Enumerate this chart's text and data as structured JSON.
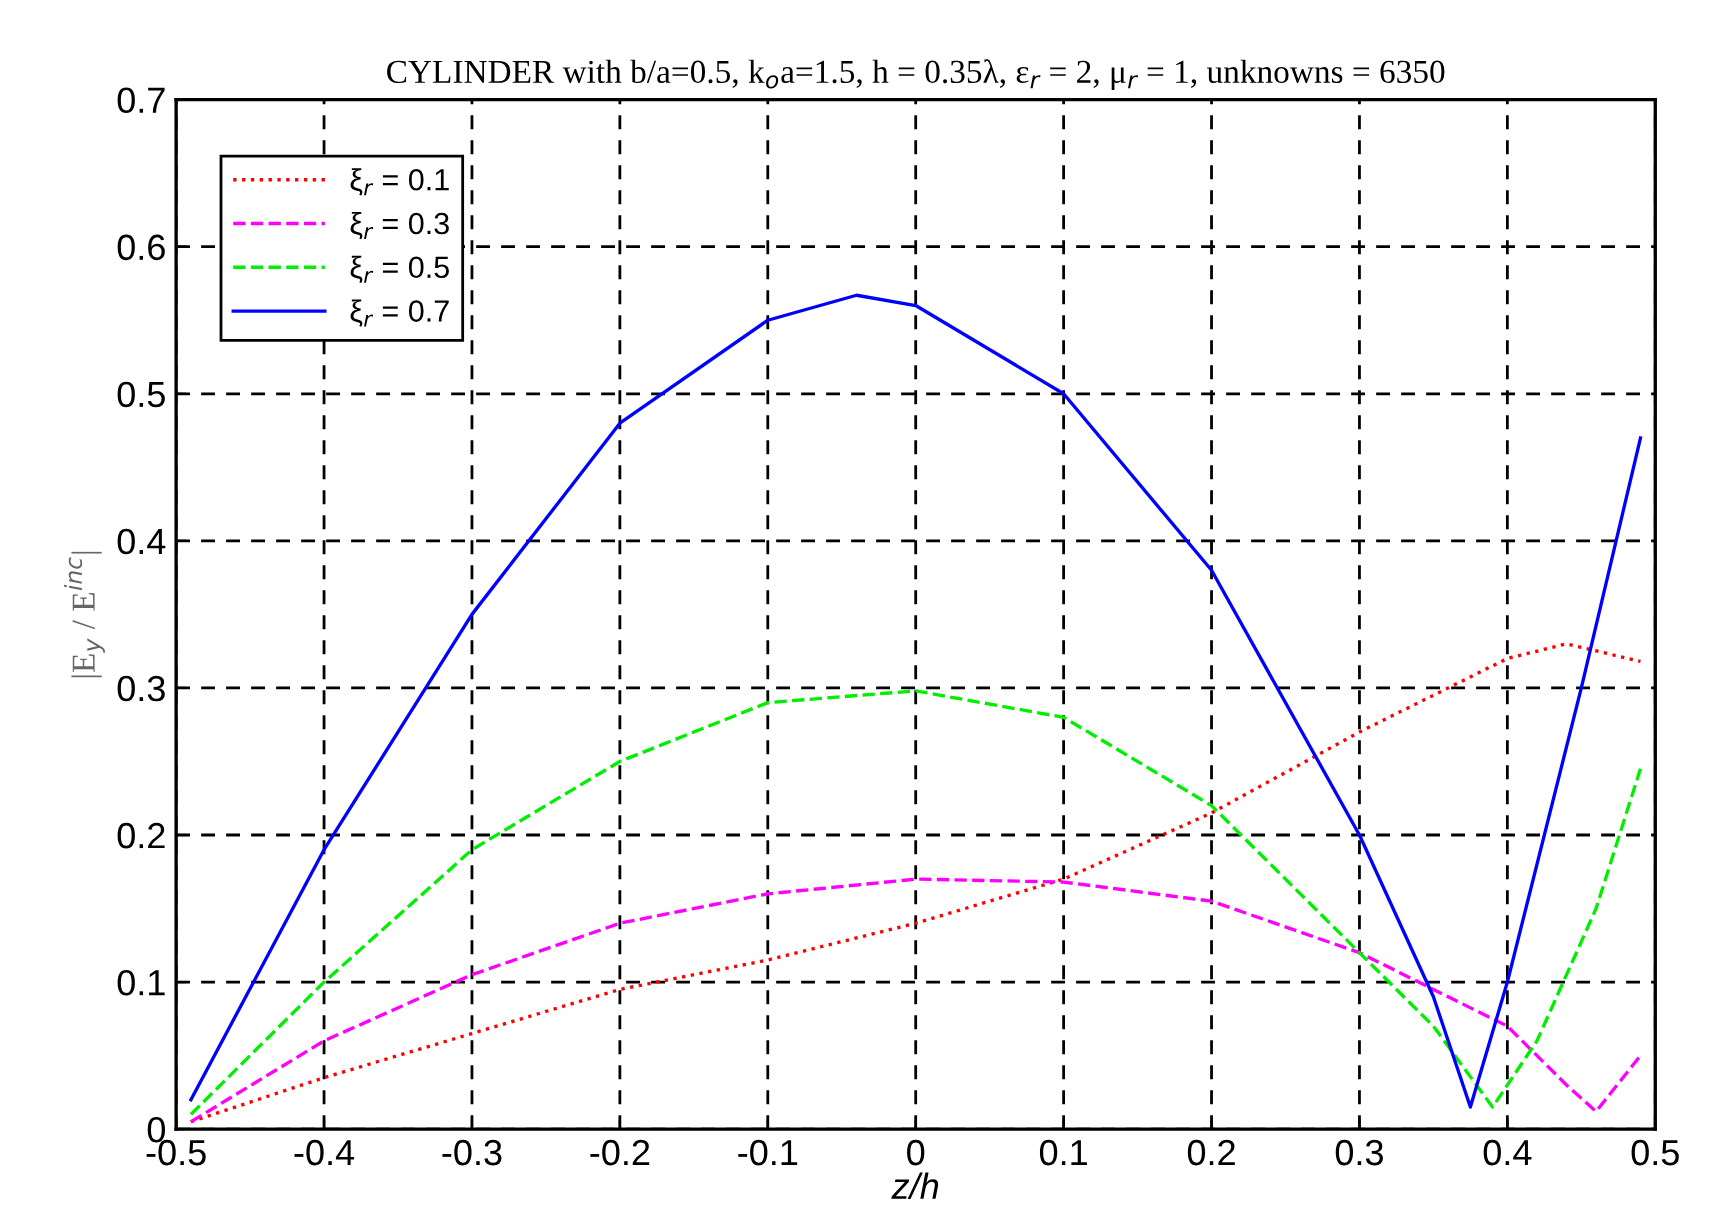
{
  "chart_data": {
    "type": "line",
    "title": "CYLINDER with b/a=0.5, k$_{o}$a=1.5, h = 0.35λ, ε$_{r}$ = 2, μ$_{r}$ = 1, unknowns = 6350",
    "xlabel": "z/h",
    "ylabel": "|E$_{y}$ / E$^{inc}$|",
    "xlim": [
      -0.5,
      0.5
    ],
    "ylim": [
      0,
      0.7
    ],
    "xticks": [
      -0.5,
      -0.4,
      -0.3,
      -0.2,
      -0.1,
      0,
      0.1,
      0.2,
      0.3,
      0.4,
      0.5
    ],
    "yticks": [
      0,
      0.1,
      0.2,
      0.3,
      0.4,
      0.5,
      0.6,
      0.7
    ],
    "grid": true,
    "legend": "top left",
    "series": [
      {
        "name": "ξ$_{r}$ = 0.1",
        "color": "#ff0000",
        "line_style": "dotted",
        "x": [
          -0.49,
          -0.4,
          -0.3,
          -0.2,
          -0.1,
          0,
          0.1,
          0.2,
          0.3,
          0.4,
          0.44,
          0.49
        ],
        "values": [
          0.005,
          0.035,
          0.065,
          0.095,
          0.115,
          0.14,
          0.17,
          0.215,
          0.27,
          0.32,
          0.33,
          0.318
        ]
      },
      {
        "name": "ξ$_{r}$ = 0.3",
        "color": "#ff00ff",
        "line_style": "dashed",
        "x": [
          -0.49,
          -0.4,
          -0.3,
          -0.2,
          -0.1,
          0,
          0.1,
          0.2,
          0.3,
          0.4,
          0.44,
          0.46,
          0.49
        ],
        "values": [
          0.005,
          0.06,
          0.105,
          0.14,
          0.16,
          0.17,
          0.168,
          0.155,
          0.12,
          0.07,
          0.03,
          0.012,
          0.05
        ]
      },
      {
        "name": "ξ$_{r}$ = 0.5",
        "color": "#00ee00",
        "line_style": "dashed",
        "x": [
          -0.49,
          -0.4,
          -0.3,
          -0.2,
          -0.1,
          0,
          0.1,
          0.2,
          0.3,
          0.35,
          0.39,
          0.42,
          0.46,
          0.49
        ],
        "values": [
          0.01,
          0.1,
          0.19,
          0.25,
          0.29,
          0.298,
          0.28,
          0.22,
          0.12,
          0.07,
          0.015,
          0.06,
          0.15,
          0.245
        ]
      },
      {
        "name": "ξ$_{r}$ = 0.7",
        "color": "#0000ff",
        "line_style": "solid",
        "x": [
          -0.49,
          -0.4,
          -0.3,
          -0.2,
          -0.1,
          -0.04,
          0,
          0.1,
          0.2,
          0.3,
          0.35,
          0.375,
          0.4,
          0.45,
          0.49
        ],
        "values": [
          0.02,
          0.19,
          0.35,
          0.48,
          0.55,
          0.567,
          0.56,
          0.5,
          0.38,
          0.2,
          0.09,
          0.015,
          0.1,
          0.3,
          0.47
        ]
      }
    ]
  }
}
